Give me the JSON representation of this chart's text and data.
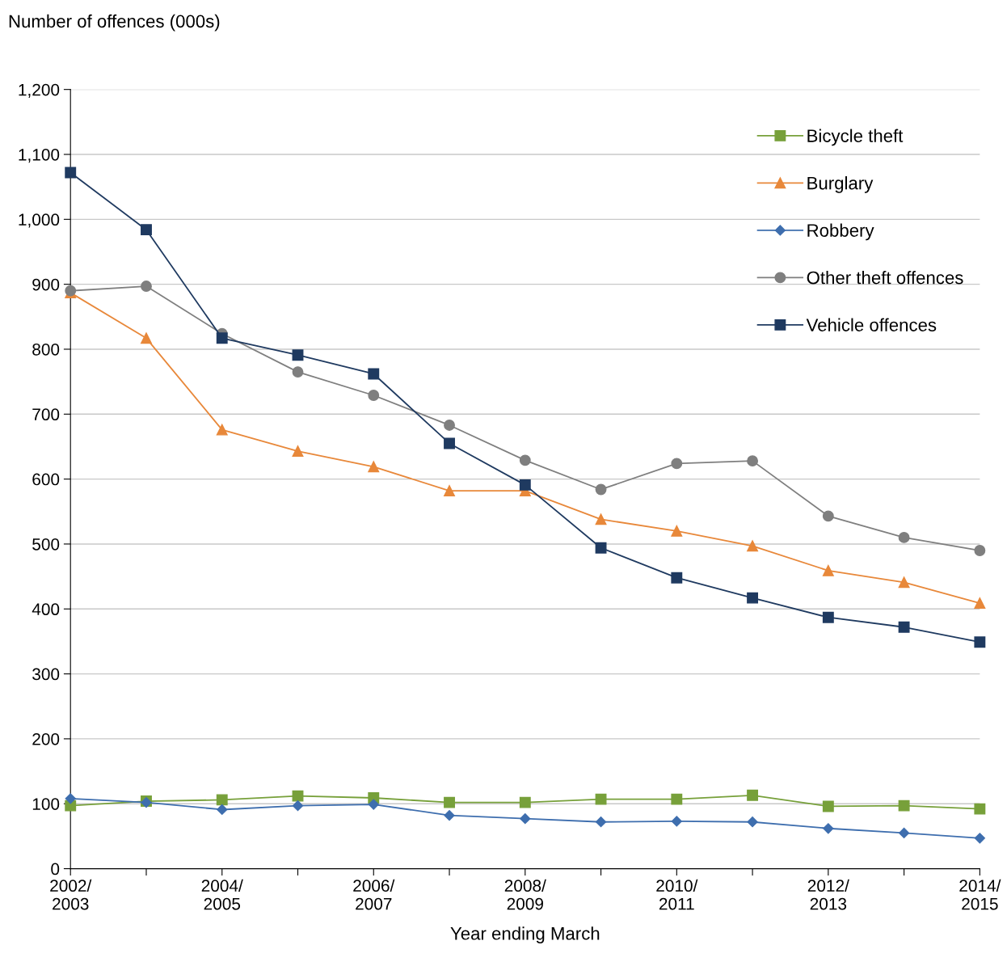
{
  "chart_data": {
    "type": "line",
    "ylabel": "Number of offences (000s)",
    "xlabel": "Year ending March",
    "categories": [
      "2002/\n2003",
      null,
      "2004/\n2005",
      null,
      "2006/\n2007",
      null,
      "2008/\n2009",
      null,
      "2010/\n2011",
      null,
      "2012/\n2013",
      null,
      "2014/\n2015"
    ],
    "series": [
      {
        "name": "Bicycle theft",
        "color": "#77a03a",
        "marker": "square",
        "values": [
          97,
          104,
          106,
          112,
          109,
          102,
          102,
          107,
          107,
          113,
          96,
          97,
          92
        ]
      },
      {
        "name": "Burglary",
        "color": "#e8883a",
        "marker": "triangle",
        "values": [
          887,
          817,
          676,
          643,
          619,
          582,
          582,
          538,
          520,
          497,
          459,
          441,
          409
        ]
      },
      {
        "name": "Robbery",
        "color": "#3e6eae",
        "marker": "diamond",
        "values": [
          108,
          102,
          91,
          97,
          99,
          82,
          77,
          72,
          73,
          72,
          62,
          55,
          47
        ]
      },
      {
        "name": "Other theft offences",
        "color": "#7f7f7f",
        "marker": "circle",
        "values": [
          890,
          897,
          824,
          765,
          729,
          683,
          629,
          584,
          624,
          628,
          543,
          510,
          490
        ]
      },
      {
        "name": "Vehicle offences",
        "color": "#1f3a60",
        "marker": "square",
        "values": [
          1072,
          984,
          817,
          791,
          762,
          655,
          591,
          494,
          448,
          417,
          387,
          372,
          349
        ]
      }
    ],
    "ylim": [
      0,
      1200
    ],
    "yticks": [
      0,
      {
        "value": 100,
        "label": "100"
      },
      200,
      300,
      400,
      500,
      600,
      700,
      800,
      900,
      {
        "value": 1000,
        "label": "1,000"
      },
      {
        "value": 1100,
        "label": "1,100"
      },
      {
        "value": 1200,
        "label": "1,200"
      }
    ],
    "grid": "y",
    "legend": "top right",
    "line_style": "solid"
  }
}
